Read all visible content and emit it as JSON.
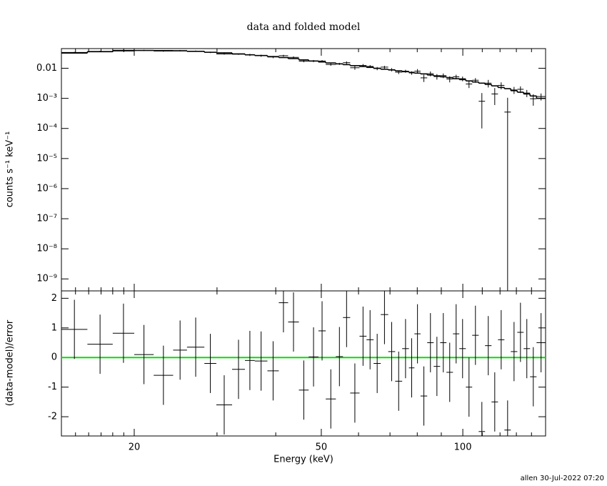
{
  "chart_data": {
    "type": "xspec",
    "title": "data and folded model",
    "xlabel": "Energy (keV)",
    "footer": "allen 30-Jul-2022 07:20",
    "log_x": true,
    "xlim": [
      14,
      150
    ],
    "xticks": [
      20,
      50,
      100
    ],
    "xminor_ticks": [
      15,
      16,
      17,
      18,
      19,
      30,
      40,
      60,
      70,
      80,
      90,
      110,
      120,
      130,
      140,
      150
    ],
    "bins": [
      14,
      15.9,
      18.0,
      20.0,
      22.0,
      24.2,
      25.9,
      28.2,
      29.9,
      32.3,
      34.4,
      36.1,
      38.4,
      40.6,
      42.5,
      44.8,
      47.0,
      49.3,
      51.1,
      53.7,
      55.6,
      57.6,
      60.3,
      62.4,
      64.6,
      66.9,
      69.4,
      71.8,
      74.3,
      76.8,
      78.9,
      81.3,
      84.0,
      86.7,
      89.5,
      92.3,
      95.3,
      98.3,
      101.5,
      104.7,
      108.1,
      111.5,
      115.1,
      118.8,
      122.6,
      126.5,
      130.6,
      134.7,
      139.0,
      143.5,
      150
    ],
    "counts": {
      "ylabel": "counts s⁻¹ keV⁻¹",
      "log_y": true,
      "ylim": [
        4e-10,
        0.045
      ],
      "yticks": [
        {
          "value": 1e-09,
          "label": "10⁻⁹"
        },
        {
          "value": 1e-08,
          "label": "10⁻⁸"
        },
        {
          "value": 1e-07,
          "label": "10⁻⁷"
        },
        {
          "value": 1e-06,
          "label": "10⁻⁶"
        },
        {
          "value": 1e-05,
          "label": "10⁻⁵"
        },
        {
          "value": 0.0001,
          "label": "10⁻⁴"
        },
        {
          "value": 0.001,
          "label": "10⁻³"
        },
        0.01
      ],
      "color": "#000000",
      "values": [
        0.0335,
        0.0363,
        0.0396,
        0.0392,
        0.0373,
        0.0385,
        0.0371,
        0.0337,
        0.0299,
        0.0294,
        0.0278,
        0.0262,
        0.0236,
        0.0261,
        0.023,
        0.0173,
        0.0174,
        0.0174,
        0.0133,
        0.014,
        0.0153,
        0.0104,
        0.0124,
        0.0115,
        0.0098,
        0.0109,
        0.009,
        0.0074,
        0.008,
        0.007,
        0.008,
        0.0048,
        0.0066,
        0.0053,
        0.0057,
        0.0044,
        0.0052,
        0.0045,
        0.003,
        0.004,
        0.0008,
        0.0032,
        0.0014,
        0.0027,
        0.00035,
        0.0019,
        0.002,
        0.0015,
        0.00097,
        0.00115
      ],
      "errors": [
        0.0016,
        0.0018,
        0.0019,
        0.00195,
        0.0019,
        0.0019,
        0.0018,
        0.0017,
        0.0016,
        0.0015,
        0.0022,
        0.0021,
        0.002,
        0.0018,
        0.0017,
        0.0015,
        0.0014,
        0.0013,
        0.0012,
        0.0011,
        0.0016,
        0.0015,
        0.0014,
        0.0013,
        0.0012,
        0.0011,
        0.0011,
        0.001,
        0.0009,
        0.0009,
        0.0014,
        0.0013,
        0.0012,
        0.0011,
        0.001,
        0.001,
        0.0009,
        0.0008,
        0.0008,
        0.0007,
        0.0007,
        0.0009,
        0.0008,
        0.0007,
        0.0007,
        0.0005,
        0.0005,
        0.0004,
        0.0004,
        0.0003
      ]
    },
    "model": {
      "color": "#000000",
      "values": [
        0.032,
        0.0355,
        0.038,
        0.039,
        0.0385,
        0.038,
        0.0365,
        0.034,
        0.0325,
        0.03,
        0.028,
        0.0265,
        0.0245,
        0.0227,
        0.021,
        0.019,
        0.0174,
        0.0162,
        0.015,
        0.014,
        0.0132,
        0.0122,
        0.0114,
        0.0107,
        0.01,
        0.0093,
        0.0088,
        0.0082,
        0.0077,
        0.0073,
        0.0069,
        0.0065,
        0.006,
        0.0056,
        0.0052,
        0.0049,
        0.0045,
        0.0042,
        0.0038,
        0.0035,
        0.0032,
        0.0029,
        0.0026,
        0.0023,
        0.0021,
        0.0018,
        0.0016,
        0.0014,
        0.0012,
        0.001
      ]
    },
    "residuals": {
      "ylabel": "(data-model)/error",
      "ylim": [
        -2.65,
        2.25
      ],
      "yticks": [
        -2,
        -1,
        0,
        1,
        2
      ],
      "color": "#000000",
      "zero_line_color": "#00e000",
      "values": [
        0.95,
        0.45,
        0.82,
        0.1,
        -0.6,
        0.25,
        0.35,
        -0.2,
        -1.6,
        -0.4,
        -0.1,
        -0.12,
        -0.45,
        1.85,
        1.2,
        -1.1,
        0.02,
        0.9,
        -1.4,
        0.03,
        1.35,
        -1.2,
        0.72,
        0.6,
        -0.2,
        1.45,
        0.2,
        -0.8,
        0.3,
        -0.35,
        0.8,
        -1.3,
        0.5,
        -0.3,
        0.5,
        -0.5,
        0.8,
        0.3,
        -1.0,
        0.75,
        -2.5,
        0.4,
        -1.5,
        0.6,
        -2.45,
        0.2,
        0.85,
        0.3,
        -0.65,
        0.5
      ],
      "errors": [
        1,
        1,
        1,
        1,
        1,
        1,
        1,
        1,
        1,
        1,
        1,
        1,
        1,
        1,
        1,
        1,
        1,
        1,
        1,
        1,
        1,
        1,
        1,
        1,
        1,
        1,
        1,
        1,
        1,
        1,
        1,
        1,
        1,
        1,
        1,
        1,
        1,
        1,
        1,
        1,
        1,
        1,
        1,
        1,
        1,
        1,
        1,
        1,
        1,
        1
      ]
    }
  }
}
